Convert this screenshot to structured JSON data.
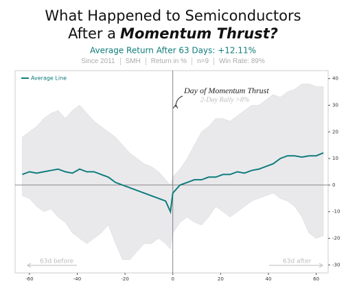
{
  "chart_data": {
    "type": "line",
    "title": [
      "What Happened to Semiconductors",
      "After a",
      "Momentum Thrust?"
    ],
    "subtitle": "Average Return After 63 Days: +12.11%",
    "info": [
      "Since 2011",
      "SMH",
      "Return in %",
      "n=9",
      "Win Rate: 89%"
    ],
    "annotations": {
      "event": "Day of Momentum Thrust",
      "event_detail": "2-Day Rally >8%",
      "before": "63d before",
      "after": "63d after"
    },
    "x": [
      -63,
      -60,
      -57,
      -54,
      -51,
      -48,
      -45,
      -42,
      -39,
      -36,
      -33,
      -30,
      -27,
      -24,
      -21,
      -18,
      -15,
      -12,
      -9,
      -6,
      -3,
      -1,
      0,
      3,
      6,
      9,
      12,
      15,
      18,
      21,
      24,
      27,
      30,
      33,
      36,
      39,
      42,
      45,
      48,
      51,
      54,
      57,
      60,
      63
    ],
    "series": [
      {
        "name": "Average Line",
        "color": "#0e7c7b",
        "values": [
          4,
          5,
          4.5,
          5,
          5.5,
          6,
          5,
          4.5,
          6,
          5,
          5,
          4,
          3,
          1,
          0,
          -1,
          -2,
          -3,
          -4,
          -5,
          -6,
          -10,
          -3,
          0,
          1,
          2,
          2,
          3,
          3,
          4,
          4,
          5,
          4.5,
          5.5,
          6,
          7,
          8,
          10,
          11,
          11,
          10.5,
          11,
          11,
          12.11
        ]
      }
    ],
    "band": {
      "color": "#e9e9ec",
      "upper": [
        18,
        20,
        22,
        25,
        27,
        28,
        25,
        28,
        30,
        27,
        24,
        22,
        20,
        18,
        15,
        12,
        10,
        8,
        7,
        5,
        2,
        0,
        3,
        6,
        10,
        15,
        20,
        22,
        25,
        25,
        24,
        26,
        28,
        30,
        30,
        32,
        34,
        33,
        35,
        36,
        38,
        38,
        37,
        37
      ],
      "lower": [
        -4,
        -5,
        -8,
        -10,
        -9,
        -12,
        -14,
        -18,
        -20,
        -22,
        -20,
        -18,
        -15,
        -22,
        -28,
        -28,
        -25,
        -22,
        -22,
        -20,
        -22,
        -24,
        -18,
        -14,
        -12,
        -14,
        -15,
        -12,
        -8,
        -10,
        -12,
        -10,
        -8,
        -6,
        -5,
        -4,
        -3,
        -5,
        -6,
        -8,
        -12,
        -18,
        -20,
        -19
      ]
    },
    "xlim": [
      -66,
      65
    ],
    "xticks": [
      -60,
      -40,
      -20,
      0,
      20,
      40,
      60
    ],
    "ylim": [
      -33,
      43
    ],
    "yticks": [
      -30,
      -20,
      -10,
      0,
      10,
      20,
      30,
      40
    ],
    "legend": "upper left"
  }
}
